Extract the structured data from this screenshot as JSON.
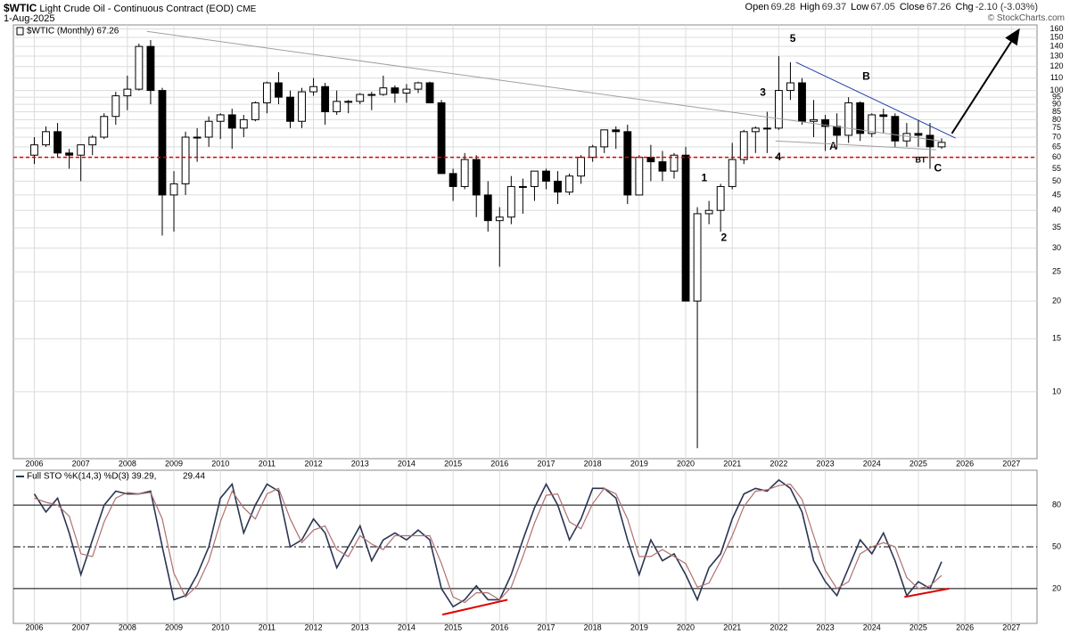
{
  "header": {
    "symbol": "$WTIC",
    "name": "Light Crude Oil - Continuous Contract (EOD)",
    "exchange": "CME",
    "date": "1-Aug-2025",
    "stats": [
      {
        "label": "Open",
        "value": "69.28"
      },
      {
        "label": "High",
        "value": "69.37"
      },
      {
        "label": "Low",
        "value": "67.05"
      },
      {
        "label": "Close",
        "value": "67.26"
      },
      {
        "label": "Chg",
        "value": "-2.10 (-3.03%)"
      }
    ],
    "copyright": "© StockCharts.com"
  },
  "chart_data": [
    {
      "type": "candlestick",
      "legend": "$WTIC (Monthly) 67.26",
      "log_scale": true,
      "grid": true,
      "x": [
        2006,
        2006.25,
        2006.5,
        2006.75,
        2007,
        2007.25,
        2007.5,
        2007.75,
        2008,
        2008.25,
        2008.5,
        2008.75,
        2009,
        2009.25,
        2009.5,
        2009.75,
        2010,
        2010.25,
        2010.5,
        2010.75,
        2011,
        2011.25,
        2011.5,
        2011.75,
        2012,
        2012.25,
        2012.5,
        2012.75,
        2013,
        2013.25,
        2013.5,
        2013.75,
        2014,
        2014.25,
        2014.5,
        2014.75,
        2015,
        2015.25,
        2015.5,
        2015.75,
        2016,
        2016.25,
        2016.5,
        2016.75,
        2017,
        2017.25,
        2017.5,
        2017.75,
        2018,
        2018.25,
        2018.5,
        2018.75,
        2019,
        2019.25,
        2019.5,
        2019.75,
        2020,
        2020.25,
        2020.5,
        2020.75,
        2021,
        2021.25,
        2021.5,
        2021.75,
        2022,
        2022.25,
        2022.5,
        2022.75,
        2023,
        2023.25,
        2023.5,
        2023.75,
        2024,
        2024.25,
        2024.5,
        2024.75,
        2025,
        2025.25,
        2025.5
      ],
      "open": [
        61,
        66,
        73,
        62,
        61,
        66,
        70,
        82,
        96,
        101,
        140,
        100,
        45,
        49,
        70,
        70,
        79,
        83,
        75,
        80,
        91,
        106,
        95,
        79,
        99,
        103,
        85,
        92,
        92,
        97,
        97,
        102,
        98,
        101,
        106,
        91,
        53,
        48,
        59,
        45,
        37,
        38,
        48,
        48,
        54,
        50,
        46,
        52,
        60,
        65,
        74,
        73,
        45,
        60,
        58,
        54,
        61,
        20,
        39,
        40,
        48,
        59,
        73,
        75,
        75,
        100,
        106,
        79,
        80,
        76,
        71,
        91,
        72,
        83,
        82,
        68,
        72,
        71,
        65
      ],
      "high": [
        70,
        76,
        78,
        64,
        66,
        71,
        84,
        99,
        112,
        143,
        147,
        102,
        54,
        73,
        75,
        82,
        84,
        87,
        83,
        92,
        107,
        115,
        100,
        102,
        110,
        106,
        100,
        93,
        98,
        99,
        112,
        104,
        105,
        107,
        107,
        93,
        55,
        62,
        61,
        50,
        41,
        52,
        51,
        54,
        55,
        54,
        53,
        61,
        66,
        73,
        76,
        77,
        61,
        66,
        63,
        62,
        65,
        41,
        43,
        49,
        67,
        74,
        76,
        85,
        130,
        124,
        110,
        93,
        83,
        84,
        95,
        92,
        84,
        87,
        84,
        78,
        80,
        78,
        69.37
      ],
      "low": [
        57,
        65,
        60,
        55,
        50,
        61,
        69,
        77,
        86,
        100,
        90,
        33,
        34,
        45,
        58,
        65,
        69,
        64,
        70,
        79,
        84,
        90,
        75,
        75,
        96,
        77,
        83,
        84,
        90,
        86,
        96,
        91,
        91,
        98,
        91,
        53,
        43,
        47,
        38,
        34,
        26,
        36,
        39,
        43,
        47,
        42,
        45,
        49,
        58,
        62,
        64,
        42,
        45,
        50,
        50,
        51,
        20,
        6.5,
        36,
        34,
        47,
        57,
        62,
        62,
        74,
        93,
        77,
        70,
        63,
        64,
        67,
        68,
        70,
        72,
        65,
        65,
        65,
        55,
        64
      ],
      "close": [
        66,
        73,
        62,
        61,
        66,
        70,
        82,
        96,
        101,
        140,
        100,
        45,
        49,
        70,
        70,
        79,
        83,
        75,
        80,
        91,
        106,
        95,
        79,
        99,
        103,
        85,
        92,
        92,
        97,
        97,
        102,
        98,
        101,
        106,
        91,
        53,
        48,
        59,
        45,
        37,
        38,
        48,
        48,
        54,
        50,
        46,
        52,
        60,
        65,
        74,
        73,
        45,
        60,
        58,
        54,
        61,
        20,
        39,
        40,
        48,
        59,
        73,
        75,
        75,
        100,
        106,
        79,
        80,
        76,
        71,
        91,
        72,
        83,
        82,
        68,
        72,
        71,
        65,
        67.26
      ],
      "xlim": [
        2005.55,
        2027.55
      ],
      "xticks": [
        2006,
        2007,
        2008,
        2009,
        2010,
        2011,
        2012,
        2013,
        2014,
        2015,
        2016,
        2017,
        2018,
        2019,
        2020,
        2021,
        2022,
        2023,
        2024,
        2025,
        2026,
        2027
      ],
      "ylim": [
        6,
        165
      ],
      "yticks": [
        10,
        15,
        20,
        25,
        30,
        35,
        40,
        45,
        50,
        55,
        60,
        65,
        70,
        75,
        80,
        85,
        90,
        95,
        100,
        110,
        120,
        130,
        140,
        150,
        160
      ],
      "support_line": {
        "y": 60,
        "color": "#e00000"
      },
      "trendlines": [
        {
          "x": [
            2008.42,
            2025.47
          ],
          "y": [
            157,
            68
          ],
          "color": "#a0a0a0"
        },
        {
          "x": [
            2021.93,
            2025.38
          ],
          "y": [
            68,
            63.6
          ],
          "color": "#a0a0a0"
        },
        {
          "x": [
            2022.37,
            2025.8
          ],
          "y": [
            124,
            69.5
          ],
          "color": "#1f3fa8"
        },
        {
          "x": [
            2025.72,
            2027.16
          ],
          "y": [
            72,
            159
          ],
          "color": "#000000",
          "arrow": true
        }
      ],
      "annotations": [
        {
          "text": "1",
          "x": 2020.4,
          "y": 51,
          "color": "#000000"
        },
        {
          "text": "2",
          "x": 2020.82,
          "y": 32.4,
          "color": "#000000"
        },
        {
          "text": "3",
          "x": 2021.66,
          "y": 98,
          "color": "#000000"
        },
        {
          "text": "4",
          "x": 2021.99,
          "y": 60,
          "color": "#000000"
        },
        {
          "text": "5",
          "x": 2022.3,
          "y": 148,
          "color": "#000000"
        },
        {
          "text": "A",
          "x": 2023.17,
          "y": 65,
          "color": "#e00000"
        },
        {
          "text": "B",
          "x": 2023.88,
          "y": 111,
          "color": "#e00000"
        },
        {
          "text": "C",
          "x": 2025.42,
          "y": 55,
          "color": "#e00000"
        },
        {
          "text": "BT",
          "x": 2025.05,
          "y": 58.5,
          "color": "#000000"
        }
      ]
    },
    {
      "type": "line",
      "legend": [
        "Full STO %K(14,3) %D(3) 39.29,",
        "29.44"
      ],
      "legend_colors": [
        "#000000",
        "#c00000"
      ],
      "x": [
        2006,
        2006.25,
        2006.5,
        2006.75,
        2007,
        2007.25,
        2007.5,
        2007.75,
        2008,
        2008.25,
        2008.5,
        2008.75,
        2009,
        2009.25,
        2009.5,
        2009.75,
        2010,
        2010.25,
        2010.5,
        2010.75,
        2011,
        2011.25,
        2011.5,
        2011.75,
        2012,
        2012.25,
        2012.5,
        2012.75,
        2013,
        2013.25,
        2013.5,
        2013.75,
        2014,
        2014.25,
        2014.5,
        2014.75,
        2015,
        2015.25,
        2015.5,
        2015.75,
        2016,
        2016.25,
        2016.5,
        2016.75,
        2017,
        2017.25,
        2017.5,
        2017.75,
        2018,
        2018.25,
        2018.5,
        2018.75,
        2019,
        2019.25,
        2019.5,
        2019.75,
        2020,
        2020.25,
        2020.5,
        2020.75,
        2021,
        2021.25,
        2021.5,
        2021.75,
        2022,
        2022.25,
        2022.5,
        2022.75,
        2023,
        2023.25,
        2023.5,
        2023.75,
        2024,
        2024.25,
        2024.5,
        2024.75,
        2025,
        2025.25,
        2025.5
      ],
      "series": [
        {
          "color": "#2a3552",
          "values": [
            88,
            75,
            85,
            60,
            30,
            55,
            80,
            90,
            88,
            88,
            90,
            50,
            12,
            15,
            30,
            50,
            85,
            95,
            60,
            80,
            95,
            90,
            50,
            55,
            70,
            60,
            35,
            50,
            65,
            40,
            55,
            60,
            55,
            62,
            55,
            20,
            7,
            12,
            22,
            12,
            12,
            30,
            55,
            78,
            95,
            80,
            55,
            70,
            92,
            92,
            85,
            55,
            30,
            55,
            40,
            45,
            30,
            12,
            35,
            45,
            70,
            88,
            92,
            90,
            98,
            92,
            75,
            40,
            25,
            15,
            35,
            55,
            45,
            60,
            40,
            15,
            25,
            20,
            39.29
          ]
        },
        {
          "color": "#b07070",
          "values": [
            85,
            82,
            80,
            72,
            45,
            43,
            68,
            85,
            89,
            88,
            89,
            70,
            31,
            14,
            22,
            40,
            68,
            90,
            78,
            70,
            88,
            92,
            70,
            53,
            62,
            65,
            48,
            43,
            58,
            52,
            48,
            58,
            58,
            58,
            58,
            38,
            14,
            10,
            17,
            17,
            12,
            21,
            43,
            67,
            87,
            88,
            68,
            63,
            81,
            92,
            88,
            70,
            43,
            43,
            48,
            43,
            38,
            21,
            24,
            40,
            58,
            79,
            90,
            91,
            94,
            95,
            84,
            58,
            33,
            20,
            25,
            45,
            50,
            53,
            50,
            28,
            20,
            22,
            29.44
          ]
        }
      ],
      "xlim": [
        2005.55,
        2027.55
      ],
      "xticks": [
        2006,
        2007,
        2008,
        2009,
        2010,
        2011,
        2012,
        2013,
        2014,
        2015,
        2016,
        2017,
        2018,
        2019,
        2020,
        2021,
        2022,
        2023,
        2024,
        2025,
        2026,
        2027
      ],
      "ylim": [
        -5,
        105
      ],
      "yticks": [
        20,
        50,
        80
      ],
      "trendlines": [
        {
          "x": [
            2014.77,
            2016.17
          ],
          "y": [
            1.3,
            12
          ],
          "color": "#e00000"
        },
        {
          "x": [
            2024.7,
            2025.66
          ],
          "y": [
            14,
            20
          ],
          "color": "#e00000"
        }
      ]
    }
  ]
}
